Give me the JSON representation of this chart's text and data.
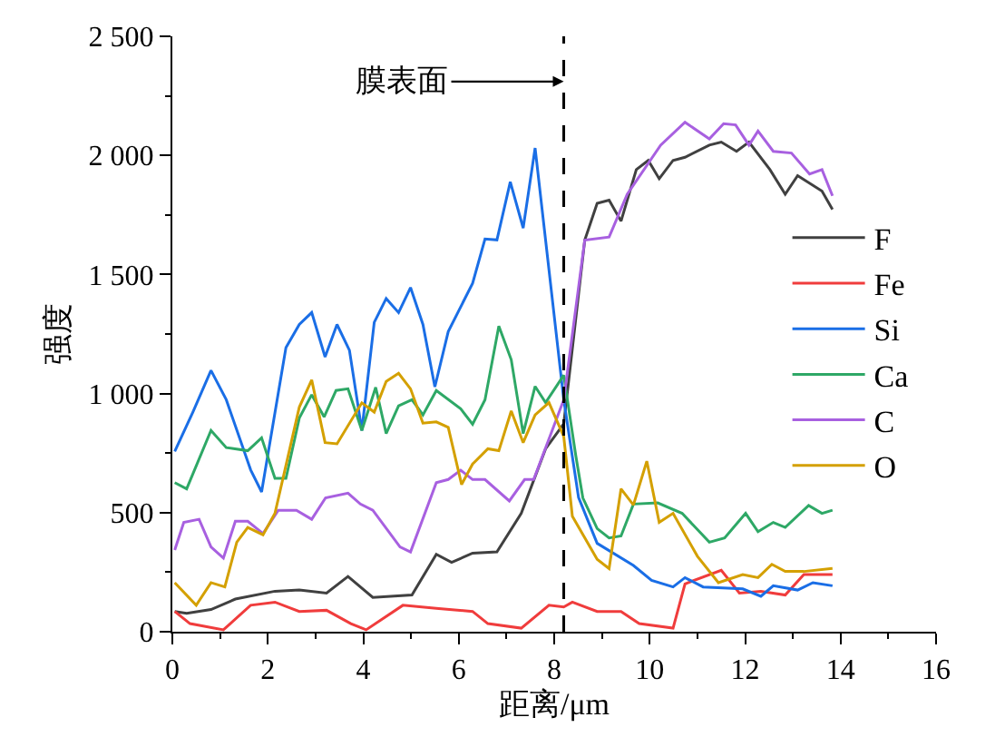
{
  "chart_data": {
    "type": "line",
    "xlabel": "距离/μm",
    "ylabel": "强度",
    "xlim": [
      0,
      16
    ],
    "xticks": [
      0,
      2,
      4,
      6,
      8,
      10,
      12,
      14,
      16
    ],
    "ylim": [
      0,
      2500
    ],
    "yticks": [
      0,
      500,
      {
        "value": 1000,
        "label": "1 000"
      },
      {
        "value": 1500,
        "label": "1 500"
      },
      {
        "value": 2000,
        "label": "2 000"
      },
      {
        "value": 2500,
        "label": "2 500"
      }
    ],
    "legend": "right",
    "marker": "none",
    "line_style": "solid",
    "ref_lines": [
      {
        "axis": "x",
        "value": 8.2,
        "line_style": "dashed",
        "color": "#000000"
      }
    ],
    "annotations": [
      {
        "text": "膜表面",
        "x": 8.2,
        "y": 2310
      }
    ],
    "series": [
      {
        "name": "F",
        "color": "#404040",
        "x": [
          0.05,
          0.3,
          0.81,
          1.32,
          2.15,
          2.66,
          3.23,
          3.68,
          4.2,
          5.02,
          5.53,
          5.85,
          6.29,
          6.8,
          7.31,
          7.82,
          8.2,
          8.64,
          8.9,
          9.15,
          9.4,
          9.72,
          9.97,
          10.2,
          10.49,
          10.74,
          11.25,
          11.5,
          11.82,
          12.08,
          12.52,
          12.84,
          13.1,
          13.61,
          13.83
        ],
        "values": [
          85,
          77,
          93,
          137,
          170,
          175,
          162,
          232,
          144,
          154,
          325,
          291,
          330,
          335,
          497,
          768,
          873,
          1644,
          1799,
          1812,
          1724,
          1940,
          1979,
          1902,
          1979,
          1992,
          2043,
          2056,
          2017,
          2056,
          1940,
          1837,
          1915,
          1850,
          1773
        ]
      },
      {
        "name": "Fe",
        "color": "#f03c3c",
        "x": [
          0.05,
          0.37,
          1.07,
          1.64,
          2.15,
          2.66,
          3.23,
          3.74,
          4.06,
          4.83,
          5.53,
          6.29,
          6.61,
          7.31,
          7.89,
          8.2,
          8.38,
          8.9,
          9.4,
          9.78,
          10.49,
          10.74,
          11.5,
          11.88,
          12.33,
          12.84,
          13.23,
          13.83
        ],
        "values": [
          85,
          34,
          8,
          111,
          124,
          85,
          90,
          34,
          8,
          111,
          98,
          85,
          34,
          15,
          111,
          104,
          124,
          85,
          85,
          34,
          15,
          201,
          258,
          162,
          170,
          154,
          240,
          240
        ]
      },
      {
        "name": "Si",
        "color": "#1a6ee6",
        "x": [
          0.05,
          0.43,
          0.81,
          1.13,
          1.64,
          1.87,
          2.38,
          2.66,
          2.92,
          3.2,
          3.45,
          3.71,
          3.97,
          4.23,
          4.48,
          4.74,
          4.99,
          5.25,
          5.5,
          5.78,
          6.29,
          6.55,
          6.8,
          7.08,
          7.35,
          7.6,
          8.2,
          8.51,
          8.9,
          9.66,
          10.04,
          10.49,
          10.74,
          11.12,
          11.95,
          12.33,
          12.59,
          13.1,
          13.42,
          13.83
        ],
        "values": [
          757,
          922,
          1097,
          974,
          680,
          587,
          1193,
          1290,
          1340,
          1154,
          1290,
          1182,
          845,
          1299,
          1399,
          1340,
          1445,
          1290,
          1028,
          1260,
          1463,
          1649,
          1645,
          1889,
          1695,
          2031,
          974,
          564,
          371,
          278,
          216,
          188,
          227,
          188,
          180,
          149,
          193,
          175,
          206,
          193
        ]
      },
      {
        "name": "Ca",
        "color": "#2ea866",
        "x": [
          0.05,
          0.3,
          0.81,
          1.13,
          1.58,
          1.87,
          2.15,
          2.38,
          2.66,
          2.92,
          3.18,
          3.43,
          3.68,
          3.97,
          4.26,
          4.48,
          4.74,
          5.02,
          5.25,
          5.53,
          6.04,
          6.29,
          6.55,
          6.84,
          7.1,
          7.35,
          7.6,
          7.82,
          8.2,
          8.45,
          8.6,
          8.9,
          9.15,
          9.4,
          9.66,
          10.17,
          10.68,
          11.25,
          11.57,
          12.01,
          12.27,
          12.59,
          12.84,
          13.33,
          13.61,
          13.83
        ],
        "values": [
          626,
          600,
          845,
          773,
          760,
          814,
          644,
          644,
          897,
          995,
          902,
          1013,
          1020,
          845,
          1026,
          832,
          948,
          974,
          910,
          1013,
          936,
          871,
          974,
          1283,
          1142,
          832,
          1030,
          962,
          1077,
          742,
          562,
          433,
          394,
          402,
          536,
          541,
          497,
          376,
          394,
          497,
          420,
          459,
          438,
          530,
          497,
          510
        ]
      },
      {
        "name": "C",
        "color": "#a860e0",
        "x": [
          0.05,
          0.24,
          0.56,
          0.81,
          1.07,
          1.32,
          1.58,
          1.9,
          2.22,
          2.6,
          2.92,
          3.21,
          3.68,
          3.94,
          4.2,
          4.77,
          4.99,
          5.53,
          5.78,
          6.04,
          6.29,
          6.55,
          7.06,
          7.38,
          7.57,
          8.2,
          8.64,
          9.15,
          9.53,
          10.23,
          10.74,
          11.25,
          11.55,
          11.8,
          12.08,
          12.27,
          12.59,
          12.97,
          13.35,
          13.61,
          13.83
        ],
        "values": [
          343,
          459,
          472,
          356,
          309,
          464,
          464,
          412,
          510,
          510,
          472,
          562,
          582,
          536,
          510,
          356,
          335,
          626,
          639,
          678,
          639,
          639,
          549,
          639,
          639,
          974,
          1644,
          1657,
          1837,
          2043,
          2139,
          2069,
          2133,
          2128,
          2043,
          2102,
          2017,
          2010,
          1922,
          1940,
          1830
        ]
      },
      {
        "name": "O",
        "color": "#d4a000",
        "x": [
          0.05,
          0.5,
          0.81,
          1.1,
          1.35,
          1.58,
          1.9,
          2.15,
          2.66,
          2.92,
          3.2,
          3.45,
          3.97,
          4.23,
          4.48,
          4.74,
          4.99,
          5.25,
          5.53,
          5.78,
          6.06,
          6.29,
          6.61,
          6.84,
          7.1,
          7.35,
          7.6,
          7.89,
          8.2,
          8.38,
          8.9,
          9.15,
          9.4,
          9.66,
          9.94,
          10.2,
          10.49,
          11.0,
          11.44,
          11.95,
          12.27,
          12.56,
          12.84,
          13.23,
          13.83
        ],
        "values": [
          206,
          111,
          206,
          188,
          376,
          438,
          407,
          497,
          943,
          1057,
          794,
          789,
          961,
          922,
          1051,
          1085,
          1020,
          876,
          881,
          858,
          618,
          704,
          768,
          760,
          927,
          794,
          910,
          962,
          820,
          485,
          304,
          265,
          600,
          532,
          716,
          459,
          497,
          317,
          206,
          240,
          227,
          283,
          253,
          253,
          266
        ]
      }
    ]
  }
}
